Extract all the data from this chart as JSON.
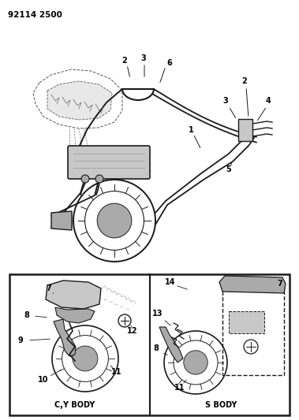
{
  "title_text": "92114 2500",
  "bg_color": "#ffffff",
  "fig_width": 3.79,
  "fig_height": 5.33,
  "dpi": 100,
  "box_lower_label_left": "C,Y BODY",
  "box_lower_label_right": "S BODY",
  "gray_light": "#c8c8c8",
  "gray_mid": "#aaaaaa",
  "gray_dark": "#888888",
  "line_color": "#1a1a1a"
}
